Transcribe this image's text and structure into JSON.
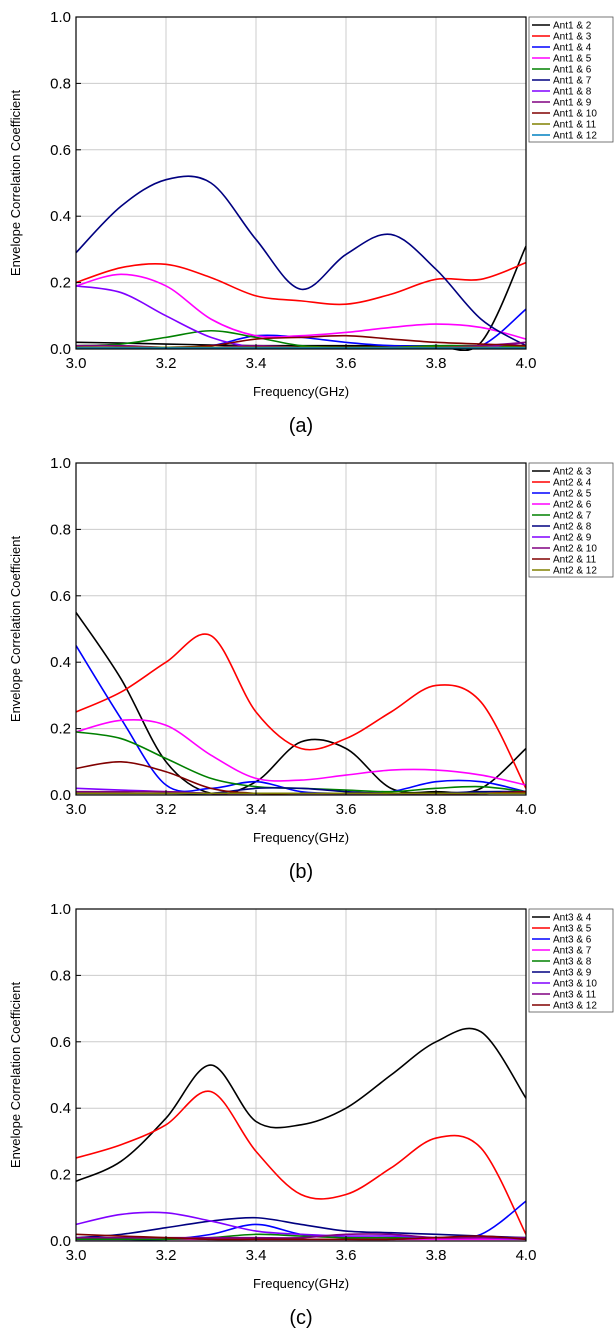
{
  "chart_data": [
    {
      "type": "line",
      "panel_label": "(a)",
      "xlabel": "Frequency(GHz)",
      "ylabel": "Envelope Correlation Coefficient",
      "xlim": [
        3.0,
        4.0
      ],
      "ylim": [
        0.0,
        1.0
      ],
      "xticks": [
        "3.0",
        "3.2",
        "3.4",
        "3.6",
        "3.8",
        "4.0"
      ],
      "yticks": [
        "0.0",
        "0.2",
        "0.4",
        "0.6",
        "0.8",
        "1.0"
      ],
      "grid": true,
      "legend_position": "right",
      "x": [
        3.0,
        3.1,
        3.2,
        3.3,
        3.4,
        3.5,
        3.6,
        3.7,
        3.8,
        3.9,
        4.0
      ],
      "series": [
        {
          "name": "Ant1 & 2",
          "color": "#000000",
          "values": [
            0.02,
            0.018,
            0.015,
            0.012,
            0.01,
            0.01,
            0.01,
            0.01,
            0.01,
            0.02,
            0.31
          ]
        },
        {
          "name": "Ant1 & 3",
          "color": "#ff0000",
          "values": [
            0.2,
            0.245,
            0.255,
            0.215,
            0.16,
            0.145,
            0.135,
            0.165,
            0.21,
            0.21,
            0.26
          ]
        },
        {
          "name": "Ant1 & 4",
          "color": "#0000ff",
          "values": [
            0.005,
            0.005,
            0.005,
            0.01,
            0.04,
            0.035,
            0.02,
            0.01,
            0.01,
            0.01,
            0.12
          ]
        },
        {
          "name": "Ant1 & 5",
          "color": "#ff00ff",
          "values": [
            0.19,
            0.225,
            0.19,
            0.09,
            0.04,
            0.04,
            0.05,
            0.065,
            0.075,
            0.065,
            0.03
          ]
        },
        {
          "name": "Ant1 & 6",
          "color": "#008000",
          "values": [
            0.01,
            0.015,
            0.035,
            0.055,
            0.035,
            0.01,
            0.005,
            0.005,
            0.01,
            0.01,
            0.01
          ]
        },
        {
          "name": "Ant1 & 7",
          "color": "#000080",
          "values": [
            0.29,
            0.43,
            0.51,
            0.5,
            0.33,
            0.18,
            0.285,
            0.345,
            0.24,
            0.09,
            0.01
          ]
        },
        {
          "name": "Ant1 & 8",
          "color": "#8000ff",
          "values": [
            0.19,
            0.17,
            0.1,
            0.035,
            0.005,
            0.005,
            0.005,
            0.005,
            0.005,
            0.005,
            0.02
          ]
        },
        {
          "name": "Ant1 & 9",
          "color": "#800080",
          "values": [
            0.01,
            0.01,
            0.005,
            0.005,
            0.01,
            0.005,
            0.005,
            0.005,
            0.005,
            0.01,
            0.02
          ]
        },
        {
          "name": "Ant1 & 10",
          "color": "#800000",
          "values": [
            0.005,
            0.005,
            0.005,
            0.01,
            0.03,
            0.035,
            0.04,
            0.03,
            0.02,
            0.015,
            0.01
          ]
        },
        {
          "name": "Ant1 & 11",
          "color": "#808000",
          "values": [
            0.005,
            0.005,
            0.005,
            0.005,
            0.005,
            0.005,
            0.005,
            0.005,
            0.005,
            0.005,
            0.005
          ]
        },
        {
          "name": "Ant1 & 12",
          "color": "#0080c0",
          "values": [
            0.003,
            0.003,
            0.003,
            0.003,
            0.003,
            0.003,
            0.003,
            0.003,
            0.003,
            0.003,
            0.003
          ]
        }
      ]
    },
    {
      "type": "line",
      "panel_label": "(b)",
      "xlabel": "Frequency(GHz)",
      "ylabel": "Envelope Correlation Coefficient",
      "xlim": [
        3.0,
        4.0
      ],
      "ylim": [
        0.0,
        1.0
      ],
      "xticks": [
        "3.0",
        "3.2",
        "3.4",
        "3.6",
        "3.8",
        "4.0"
      ],
      "yticks": [
        "0.0",
        "0.2",
        "0.4",
        "0.6",
        "0.8",
        "1.0"
      ],
      "grid": true,
      "legend_position": "right",
      "x": [
        3.0,
        3.1,
        3.2,
        3.3,
        3.4,
        3.5,
        3.6,
        3.7,
        3.8,
        3.9,
        4.0
      ],
      "series": [
        {
          "name": "Ant2 & 3",
          "color": "#000000",
          "values": [
            0.55,
            0.35,
            0.1,
            0.005,
            0.04,
            0.16,
            0.14,
            0.02,
            0.01,
            0.02,
            0.14
          ]
        },
        {
          "name": "Ant2 & 4",
          "color": "#ff0000",
          "values": [
            0.25,
            0.31,
            0.4,
            0.48,
            0.25,
            0.14,
            0.17,
            0.25,
            0.33,
            0.28,
            0.02
          ]
        },
        {
          "name": "Ant2 & 5",
          "color": "#0000ff",
          "values": [
            0.45,
            0.23,
            0.03,
            0.02,
            0.04,
            0.01,
            0.005,
            0.01,
            0.04,
            0.04,
            0.01
          ]
        },
        {
          "name": "Ant2 & 6",
          "color": "#ff00ff",
          "values": [
            0.19,
            0.225,
            0.21,
            0.12,
            0.05,
            0.045,
            0.06,
            0.075,
            0.075,
            0.06,
            0.03
          ]
        },
        {
          "name": "Ant2 & 7",
          "color": "#008000",
          "values": [
            0.19,
            0.17,
            0.11,
            0.05,
            0.025,
            0.02,
            0.015,
            0.01,
            0.02,
            0.025,
            0.01
          ]
        },
        {
          "name": "Ant2 & 8",
          "color": "#000080",
          "values": [
            0.005,
            0.005,
            0.005,
            0.005,
            0.02,
            0.02,
            0.01,
            0.005,
            0.005,
            0.01,
            0.01
          ]
        },
        {
          "name": "Ant2 & 9",
          "color": "#8000ff",
          "values": [
            0.02,
            0.015,
            0.01,
            0.005,
            0.005,
            0.005,
            0.005,
            0.005,
            0.005,
            0.005,
            0.01
          ]
        },
        {
          "name": "Ant2 & 10",
          "color": "#800080",
          "values": [
            0.01,
            0.01,
            0.01,
            0.005,
            0.005,
            0.005,
            0.005,
            0.005,
            0.005,
            0.005,
            0.01
          ]
        },
        {
          "name": "Ant2 & 11",
          "color": "#800000",
          "values": [
            0.08,
            0.1,
            0.07,
            0.02,
            0.005,
            0.005,
            0.005,
            0.005,
            0.005,
            0.005,
            0.01
          ]
        },
        {
          "name": "Ant2 & 12",
          "color": "#808000",
          "values": [
            0.005,
            0.005,
            0.005,
            0.005,
            0.005,
            0.005,
            0.005,
            0.005,
            0.005,
            0.005,
            0.005
          ]
        }
      ]
    },
    {
      "type": "line",
      "panel_label": "(c)",
      "xlabel": "Frequency(GHz)",
      "ylabel": "Envelope Correlation Coefficient",
      "xlim": [
        3.0,
        4.0
      ],
      "ylim": [
        0.0,
        1.0
      ],
      "xticks": [
        "3.0",
        "3.2",
        "3.4",
        "3.6",
        "3.8",
        "4.0"
      ],
      "yticks": [
        "0.0",
        "0.2",
        "0.4",
        "0.6",
        "0.8",
        "1.0"
      ],
      "grid": true,
      "legend_position": "right",
      "x": [
        3.0,
        3.1,
        3.2,
        3.3,
        3.4,
        3.5,
        3.6,
        3.7,
        3.8,
        3.9,
        4.0
      ],
      "series": [
        {
          "name": "Ant3 & 4",
          "color": "#000000",
          "values": [
            0.18,
            0.24,
            0.37,
            0.53,
            0.36,
            0.35,
            0.4,
            0.5,
            0.6,
            0.63,
            0.43
          ]
        },
        {
          "name": "Ant3 & 5",
          "color": "#ff0000",
          "values": [
            0.25,
            0.29,
            0.35,
            0.45,
            0.27,
            0.14,
            0.14,
            0.22,
            0.31,
            0.28,
            0.02
          ]
        },
        {
          "name": "Ant3 & 6",
          "color": "#0000ff",
          "values": [
            0.005,
            0.005,
            0.005,
            0.02,
            0.05,
            0.02,
            0.01,
            0.01,
            0.01,
            0.02,
            0.12
          ]
        },
        {
          "name": "Ant3 & 7",
          "color": "#ff00ff",
          "values": [
            0.005,
            0.005,
            0.005,
            0.005,
            0.005,
            0.005,
            0.005,
            0.005,
            0.005,
            0.005,
            0.005
          ]
        },
        {
          "name": "Ant3 & 8",
          "color": "#008000",
          "values": [
            0.005,
            0.005,
            0.005,
            0.01,
            0.02,
            0.015,
            0.01,
            0.01,
            0.01,
            0.01,
            0.01
          ]
        },
        {
          "name": "Ant3 & 9",
          "color": "#000080",
          "values": [
            0.01,
            0.02,
            0.04,
            0.06,
            0.07,
            0.05,
            0.03,
            0.025,
            0.02,
            0.015,
            0.01
          ]
        },
        {
          "name": "Ant3 & 10",
          "color": "#8000ff",
          "values": [
            0.05,
            0.08,
            0.085,
            0.06,
            0.03,
            0.02,
            0.015,
            0.015,
            0.01,
            0.01,
            0.005
          ]
        },
        {
          "name": "Ant3 & 11",
          "color": "#800080",
          "values": [
            0.01,
            0.01,
            0.01,
            0.01,
            0.01,
            0.01,
            0.02,
            0.02,
            0.01,
            0.01,
            0.01
          ]
        },
        {
          "name": "Ant3 & 12",
          "color": "#800000",
          "values": [
            0.02,
            0.015,
            0.01,
            0.005,
            0.005,
            0.005,
            0.005,
            0.005,
            0.01,
            0.015,
            0.005
          ]
        }
      ]
    }
  ]
}
